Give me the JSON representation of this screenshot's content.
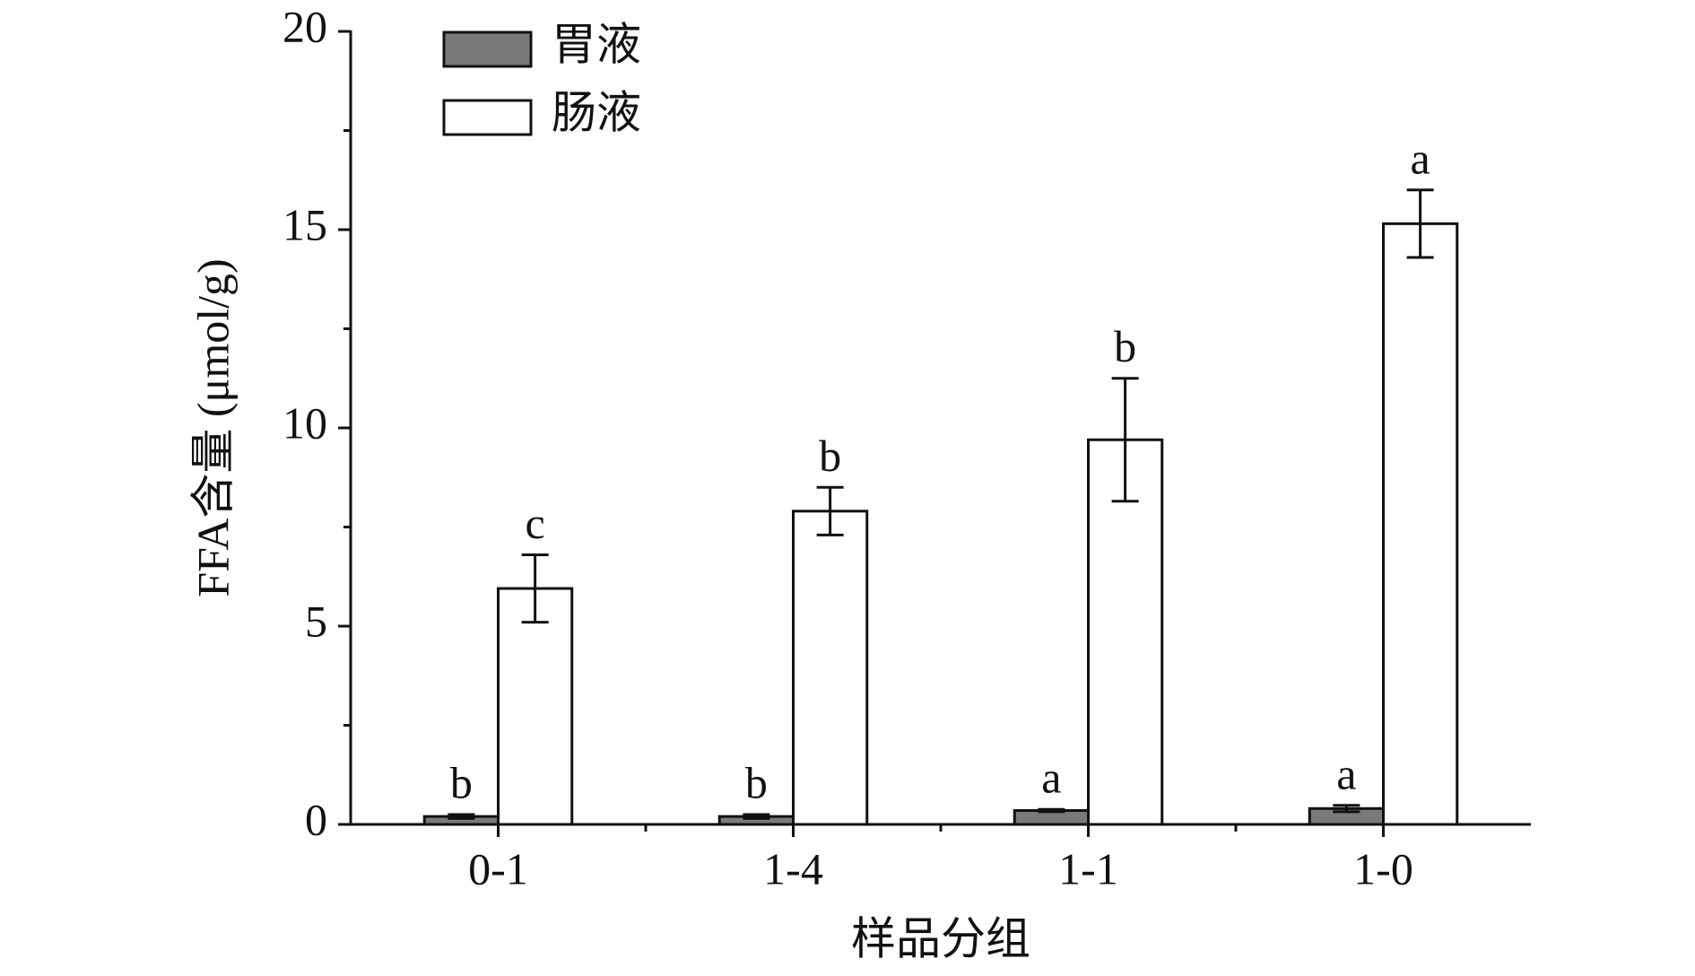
{
  "chart_data": {
    "type": "bar",
    "x_label": "样品分组",
    "y_label": "FFA含量 (μmol/g)",
    "categories": [
      "0-1",
      "1-4",
      "1-1",
      "1-0"
    ],
    "series": [
      {
        "name": "胃液",
        "color": "#7a7a7a",
        "values": [
          0.2,
          0.2,
          0.35,
          0.4
        ],
        "errors": [
          0.05,
          0.05,
          0.03,
          0.08
        ],
        "letters": [
          "b",
          "b",
          "a",
          "a"
        ]
      },
      {
        "name": "肠液",
        "color": "#ffffff",
        "values": [
          5.95,
          7.9,
          9.7,
          15.15
        ],
        "errors": [
          0.85,
          0.6,
          1.55,
          0.85
        ],
        "letters": [
          "c",
          "b",
          "b",
          "a"
        ]
      }
    ],
    "ylim": [
      0,
      20
    ],
    "yticks": [
      0,
      5,
      10,
      15,
      20
    ],
    "yminor": [
      2.5,
      7.5,
      12.5,
      17.5
    ],
    "legend": "top-left",
    "grid": false
  }
}
